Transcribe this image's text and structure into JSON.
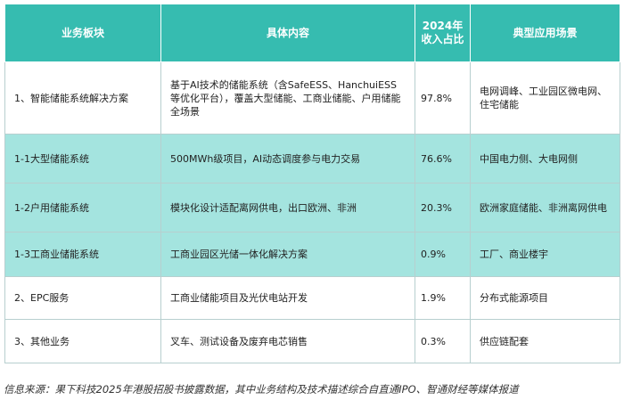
{
  "table": {
    "headers": [
      "业务板块",
      "具体内容",
      "2024年收入占比",
      "典型应用场景"
    ],
    "rows": [
      {
        "segment": "1、智能储能系统解决方案",
        "content": "基于AI技术的储能系统（含SafeESS、HanchuiESS等优化平台），覆盖大型储能、工商业储能、户用储能全场景",
        "share": "97.8%",
        "scenario": "电网调峰、工业园区微电网、住宅储能"
      },
      {
        "segment": "1-1大型储能系统",
        "content": "500MWh级项目，AI动态调度参与电力交易",
        "share": "76.6%",
        "scenario": "中国电力侧、大电网侧"
      },
      {
        "segment": "1-2户用储能系统",
        "content": "模块化设计适配离网供电，出口欧洲、非洲",
        "share": "20.3%",
        "scenario": "欧洲家庭储能、非洲离网供电"
      },
      {
        "segment": "1-3工商业储能系统",
        "content": "工商业园区光储一体化解决方案",
        "share": "0.9%",
        "scenario": "工厂、商业楼宇"
      },
      {
        "segment": "2、EPC服务",
        "content": "工商业储能项目及光伏电站开发",
        "share": "1.9%",
        "scenario": "分布式能源项目"
      },
      {
        "segment": "3、其他业务",
        "content": "叉车、测试设备及废弃电芯销售",
        "share": "0.3%",
        "scenario": "供应链配套"
      }
    ]
  },
  "footnote": "信息来源：果下科技2025年港股招股书披露数据，其中业务结构及技术描述综合自直通IPO、智通财经等媒体报道",
  "colors": {
    "header": "#36bcb0",
    "highlight_row": "#a4e4df",
    "row": "#ffffff"
  }
}
